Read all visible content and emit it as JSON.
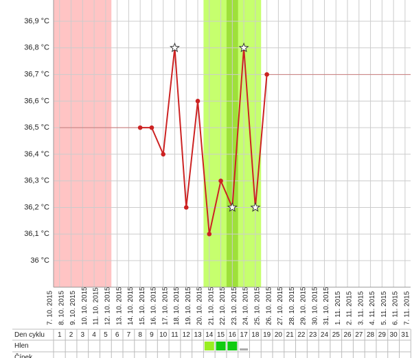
{
  "chart_data": {
    "type": "line",
    "categories": [
      "7. 10. 2015",
      "8. 10. 2015",
      "9. 10. 2015",
      "10. 10. 2015",
      "11. 10. 2015",
      "12. 10. 2015",
      "13. 10. 2015",
      "14. 10. 2015",
      "15. 10. 2015",
      "16. 10. 2015",
      "17. 10. 2015",
      "18. 10. 2015",
      "19. 10. 2015",
      "20. 10. 2015",
      "21. 10. 2015",
      "22. 10. 2015",
      "23. 10. 2015",
      "24. 10. 2015",
      "25. 10. 2015",
      "26. 10. 2015",
      "27. 10. 2015",
      "28. 10. 2015",
      "29. 10. 2015",
      "30. 10. 2015",
      "31. 10. 2015",
      "1. 11. 2015",
      "2. 11. 2015",
      "3. 11. 2015",
      "4. 11. 2015",
      "5. 11. 2015",
      "6. 11. 2015",
      "7. 11. 2015"
    ],
    "series": [
      {
        "color": "#cc2222",
        "values": [
          null,
          null,
          null,
          null,
          null,
          null,
          null,
          null,
          36.5,
          36.5,
          36.4,
          36.8,
          36.2,
          36.6,
          36.1,
          36.3,
          36.2,
          36.8,
          36.2,
          36.7,
          null,
          null,
          null,
          null,
          null,
          null,
          null,
          null,
          null,
          null,
          null,
          null
        ],
        "markers": [
          null,
          null,
          null,
          null,
          null,
          null,
          null,
          null,
          "dot",
          "dot",
          "dot",
          "star",
          "dot",
          "dot",
          "dot",
          "dot",
          "star",
          "star",
          "star",
          "dot",
          null,
          null,
          null,
          null,
          null,
          null,
          null,
          null,
          null,
          null,
          null,
          null
        ],
        "extend": true
      }
    ],
    "ylim": [
      35.9,
      36.98
    ],
    "yticks": [
      {
        "value": 36,
        "label": "36 °C"
      },
      {
        "value": 36.1,
        "label": "36,1 °C"
      },
      {
        "value": 36.2,
        "label": "36,2 °C"
      },
      {
        "value": 36.3,
        "label": "36,3 °C"
      },
      {
        "value": 36.4,
        "label": "36,4 °C"
      },
      {
        "value": 36.5,
        "label": "36,5 °C"
      },
      {
        "value": 36.6,
        "label": "36,6 °C"
      },
      {
        "value": 36.7,
        "label": "36,7 °C"
      },
      {
        "value": 36.8,
        "label": "36,8 °C"
      },
      {
        "value": 36.9,
        "label": "36,9 °C"
      }
    ],
    "grid": true,
    "bands": [
      {
        "from": 1,
        "to": 5,
        "color": "#ffc4c4"
      },
      {
        "from": 14,
        "to": 18,
        "color": "#c6ff6e"
      },
      {
        "from": 16,
        "to": 16,
        "color": "#9ee03a"
      }
    ],
    "table": {
      "row_labels": [
        "Den cyklu",
        "Hlen",
        "Čípek"
      ],
      "cycle_days": [
        1,
        2,
        3,
        4,
        5,
        6,
        7,
        8,
        9,
        10,
        11,
        12,
        13,
        14,
        15,
        16,
        17,
        18,
        19,
        20,
        21,
        22,
        23,
        24,
        25,
        26,
        27,
        28,
        29,
        30,
        31
      ],
      "mucus": [
        null,
        null,
        null,
        null,
        null,
        null,
        null,
        null,
        null,
        null,
        null,
        null,
        null,
        {
          "color": "#99ee22",
          "shape": "square"
        },
        {
          "color": "#11cc11",
          "shape": "square"
        },
        {
          "color": "#11cc11",
          "shape": "square"
        },
        {
          "color": "#aaaaaa",
          "shape": "bar"
        },
        null,
        null,
        null,
        null,
        null,
        null,
        null,
        null,
        null,
        null,
        null,
        null,
        null,
        null
      ]
    }
  }
}
